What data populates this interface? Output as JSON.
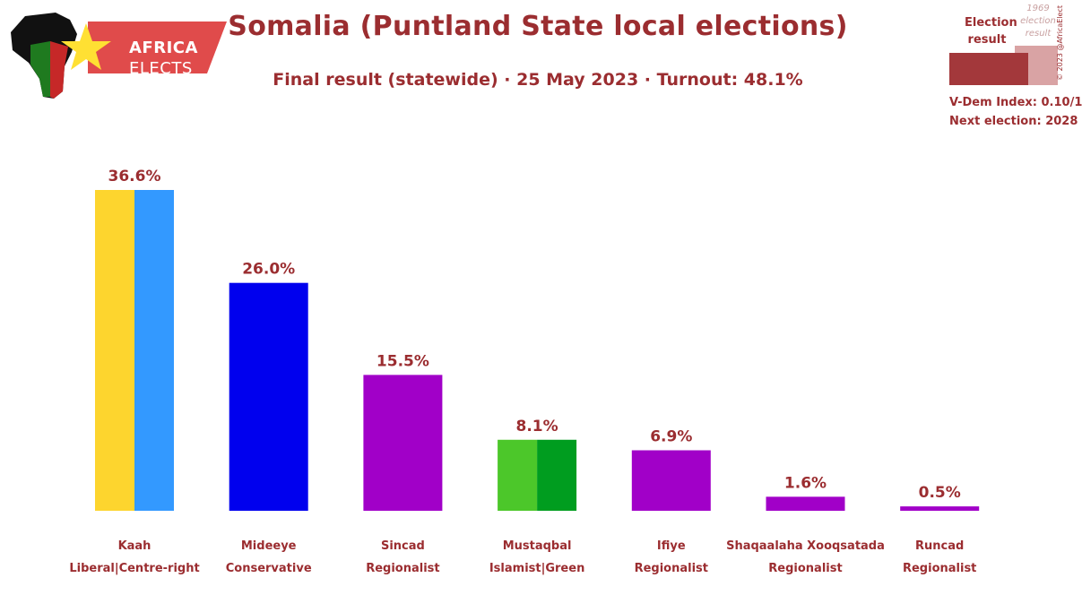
{
  "header": {
    "title": "Somalia (Puntland State local elections)",
    "subtitle": "Final result (statewide) · 25 May 2023 · Turnout: 48.1%"
  },
  "logo": {
    "line1": "AFRICA",
    "line2": "ELECTS"
  },
  "legend": {
    "result_label": "Election result",
    "historical_label": "1969 election result",
    "vdem": "V-Dem Index: 0.10/1",
    "next_election": "Next election: 2028",
    "copyright": "© 2023 @AfricaElect"
  },
  "colors": {
    "text": "#9b2d30",
    "result_bar": "#a3383b",
    "historical_bar": "#d9a3a4"
  },
  "chart_data": {
    "type": "bar",
    "title": "Somalia (Puntland State local elections)",
    "subtitle": "Final result (statewide) · 25 May 2023 · Turnout: 48.1%",
    "ylim": [
      0,
      36.6
    ],
    "categories": [
      {
        "name": "Kaah",
        "ideology": "Liberal|Centre-right",
        "value": 36.6,
        "label": "36.6%",
        "colors": [
          "#fdd52e",
          "#3399ff"
        ]
      },
      {
        "name": "Mideeye",
        "ideology": "Conservative",
        "value": 26.0,
        "label": "26.0%",
        "colors": [
          "#0000ee"
        ]
      },
      {
        "name": "Sincad",
        "ideology": "Regionalist",
        "value": 15.5,
        "label": "15.5%",
        "colors": [
          "#a100c8"
        ]
      },
      {
        "name": "Mustaqbal",
        "ideology": "Islamist|Green",
        "value": 8.1,
        "label": "8.1%",
        "colors": [
          "#4cc72a",
          "#009d1f"
        ]
      },
      {
        "name": "Ifiye",
        "ideology": "Regionalist",
        "value": 6.9,
        "label": "6.9%",
        "colors": [
          "#a100c8"
        ]
      },
      {
        "name": "Shaqaalaha Xooqsatada",
        "ideology": "Regionalist",
        "value": 1.6,
        "label": "1.6%",
        "colors": [
          "#a100c8"
        ]
      },
      {
        "name": "Runcad",
        "ideology": "Regionalist",
        "value": 0.5,
        "label": "0.5%",
        "colors": [
          "#a100c8"
        ]
      }
    ]
  }
}
